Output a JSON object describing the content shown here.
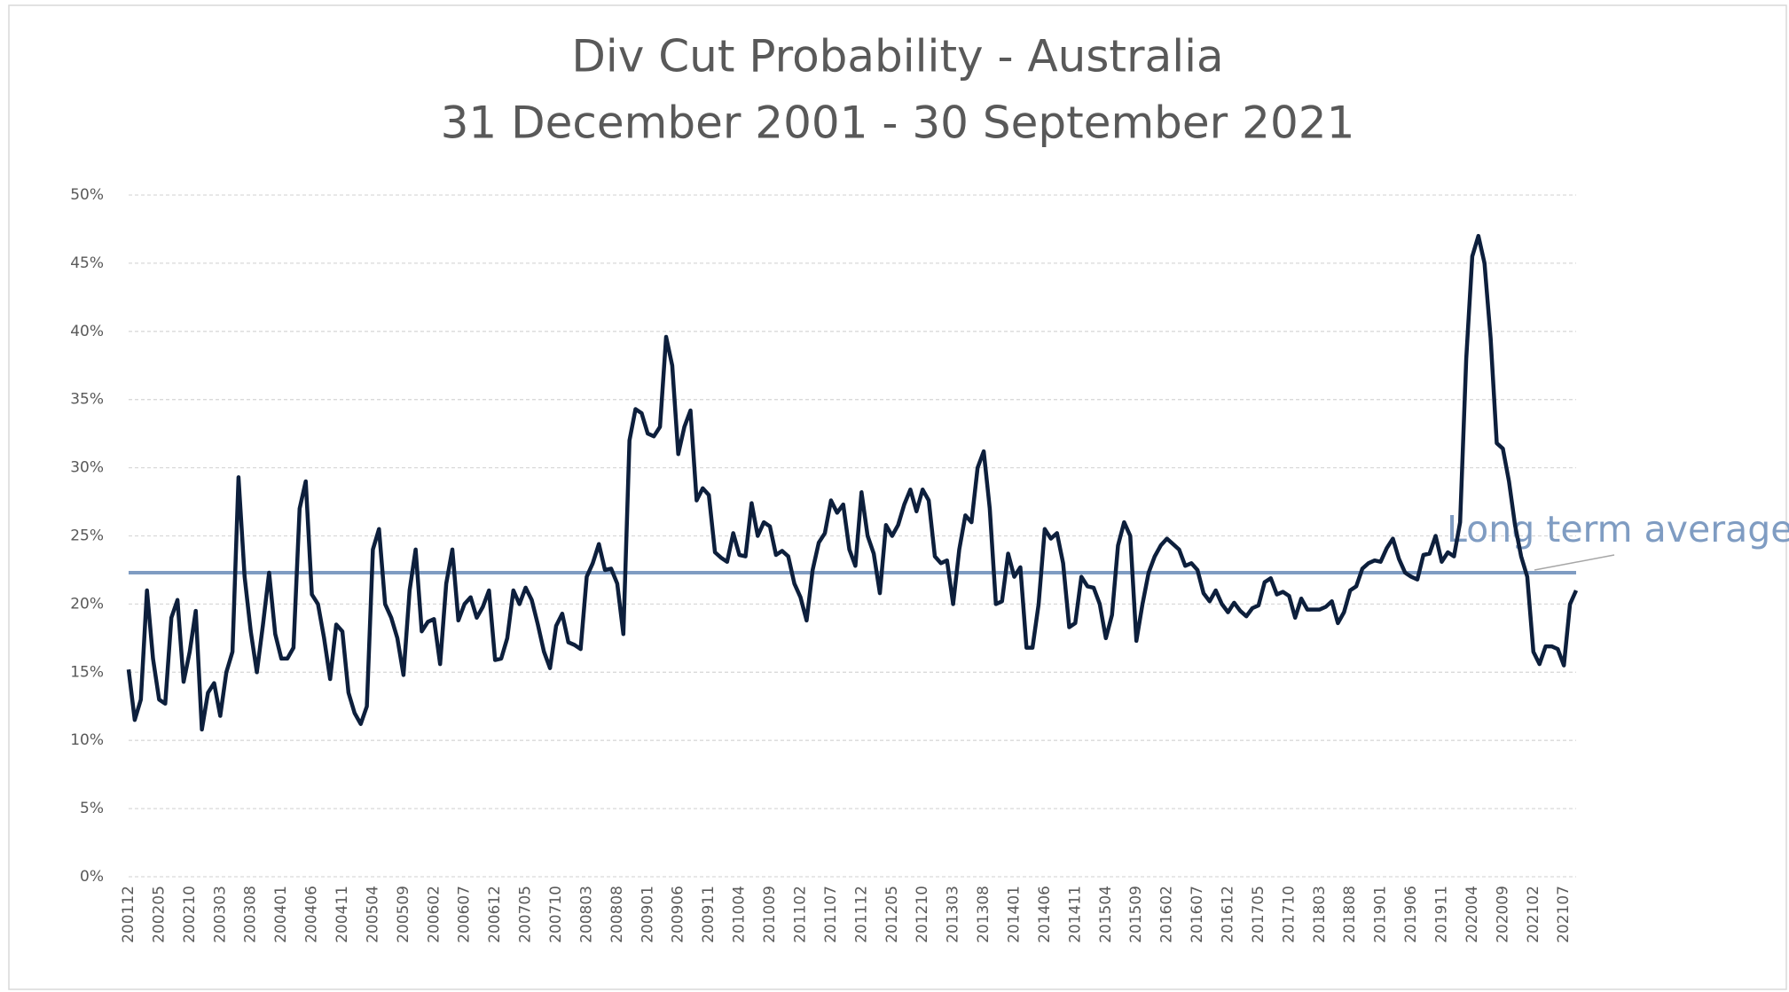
{
  "chart_data": {
    "type": "line",
    "title": "Div Cut Probability - Australia",
    "subtitle": "31 December 2001 - 30 September 2021",
    "categories": [
      "200112",
      null,
      null,
      null,
      null,
      "200205",
      null,
      null,
      null,
      null,
      "200210",
      null,
      null,
      null,
      null,
      "200303",
      null,
      null,
      null,
      null,
      "200308",
      null,
      null,
      null,
      null,
      "200401",
      null,
      null,
      null,
      null,
      "200406",
      null,
      null,
      null,
      null,
      "200411",
      null,
      null,
      null,
      null,
      "200504",
      null,
      null,
      null,
      null,
      "200509",
      null,
      null,
      null,
      null,
      "200602",
      null,
      null,
      null,
      null,
      "200607",
      null,
      null,
      null,
      null,
      "200612",
      null,
      null,
      null,
      null,
      "200705",
      null,
      null,
      null,
      null,
      "200710",
      null,
      null,
      null,
      null,
      "200803",
      null,
      null,
      null,
      null,
      "200808",
      null,
      null,
      null,
      null,
      "200901",
      null,
      null,
      null,
      null,
      "200906",
      null,
      null,
      null,
      null,
      "200911",
      null,
      null,
      null,
      null,
      "201004",
      null,
      null,
      null,
      null,
      "201009",
      null,
      null,
      null,
      null,
      "201102",
      null,
      null,
      null,
      null,
      "201107",
      null,
      null,
      null,
      null,
      "201112",
      null,
      null,
      null,
      null,
      "201205",
      null,
      null,
      null,
      null,
      "201210",
      null,
      null,
      null,
      null,
      "201303",
      null,
      null,
      null,
      null,
      "201308",
      null,
      null,
      null,
      null,
      "201401",
      null,
      null,
      null,
      null,
      "201406",
      null,
      null,
      null,
      null,
      "201411",
      null,
      null,
      null,
      null,
      "201504",
      null,
      null,
      null,
      null,
      "201509",
      null,
      null,
      null,
      null,
      "201602",
      null,
      null,
      null,
      null,
      "201607",
      null,
      null,
      null,
      null,
      "201612",
      null,
      null,
      null,
      null,
      "201705",
      null,
      null,
      null,
      null,
      "201710",
      null,
      null,
      null,
      null,
      "201803",
      null,
      null,
      null,
      null,
      "201808",
      null,
      null,
      null,
      null,
      "201901",
      null,
      null,
      null,
      null,
      "201906",
      null,
      null,
      null,
      null,
      "201911",
      null,
      null,
      null,
      null,
      "202004",
      null,
      null,
      null,
      null,
      "202009",
      null,
      null,
      null,
      null,
      "202102",
      null,
      null,
      null,
      null,
      "202107",
      null,
      null
    ],
    "series": [
      {
        "color": "#0d1f3c",
        "values": [
          15.2,
          11.5,
          13,
          21,
          16,
          13,
          12.7,
          19,
          20.3,
          14.3,
          16.5,
          19.5,
          10.8,
          13.5,
          14.2,
          11.8,
          15,
          16.5,
          29.3,
          22,
          18,
          15,
          18.5,
          22.3,
          17.8,
          16,
          16,
          16.8,
          27,
          29,
          20.7,
          20,
          17.5,
          14.5,
          18.5,
          18,
          13.5,
          12,
          11.2,
          12.5,
          24,
          25.5,
          20,
          19,
          17.5,
          14.8,
          21,
          24,
          18,
          18.7,
          18.9,
          15.6,
          21.5,
          24,
          18.8,
          20,
          20.5,
          19,
          19.8,
          21,
          15.9,
          16,
          17.5,
          21,
          20,
          21.2,
          20.3,
          18.5,
          16.5,
          15.3,
          18.4,
          19.3,
          17.2,
          17,
          16.7,
          22,
          23,
          24.4,
          22.5,
          22.6,
          21.5,
          17.8,
          32,
          34.3,
          34,
          32.5,
          32.3,
          33,
          39.6,
          37.5,
          31,
          33,
          34.2,
          27.6,
          28.5,
          28,
          23.8,
          23.4,
          23.1,
          25.2,
          23.6,
          23.5,
          27.4,
          25,
          26,
          25.7,
          23.6,
          23.9,
          23.5,
          21.5,
          20.5,
          18.8,
          22.5,
          24.5,
          25.2,
          27.6,
          26.7,
          27.3,
          24,
          22.8,
          28.2,
          25,
          23.7,
          20.8,
          25.8,
          25,
          25.8,
          27.3,
          28.4,
          26.8,
          28.4,
          27.6,
          23.5,
          23,
          23.2,
          20,
          24,
          26.5,
          26,
          30,
          31.2,
          27,
          20,
          20.2,
          23.7,
          22,
          22.7,
          16.8,
          16.8,
          20,
          25.5,
          24.8,
          25.2,
          23,
          18.3,
          18.6,
          22,
          21.3,
          21.2,
          20,
          17.5,
          19.2,
          24.3,
          26,
          25,
          17.3,
          20,
          22.3,
          23.5,
          24.3,
          24.8,
          24.4,
          24,
          22.8,
          23,
          22.5,
          20.8,
          20.2,
          21,
          20,
          19.4,
          20.1,
          19.5,
          19.1,
          19.7,
          19.9,
          21.6,
          21.9,
          20.7,
          20.9,
          20.6,
          19,
          20.4,
          19.6,
          19.6,
          19.6,
          19.8,
          20.2,
          18.6,
          19.4,
          21,
          21.3,
          22.6,
          23,
          23.2,
          23.1,
          24.1,
          24.8,
          23.3,
          22.3,
          22,
          21.8,
          23.6,
          23.7,
          25,
          23.1,
          23.8,
          23.5,
          26,
          38,
          45.5,
          47,
          45,
          39.5,
          31.8,
          31.4,
          29,
          25.8,
          23.5,
          22,
          16.5,
          15.6,
          16.9,
          16.9,
          16.7,
          15.5,
          20,
          21
        ]
      }
    ],
    "reference_line": {
      "value": 22.3,
      "label": "Long term average",
      "color": "#7f9cc2"
    },
    "ylim": [
      0,
      50
    ],
    "yticks": [
      {
        "value": 0,
        "label": "0%"
      },
      {
        "value": 5,
        "label": "5%"
      },
      {
        "value": 10,
        "label": "10%"
      },
      {
        "value": 15,
        "label": "15%"
      },
      {
        "value": 20,
        "label": "20%"
      },
      {
        "value": 25,
        "label": "25%"
      },
      {
        "value": 30,
        "label": "30%"
      },
      {
        "value": 35,
        "label": "35%"
      },
      {
        "value": 40,
        "label": "40%"
      },
      {
        "value": 45,
        "label": "45%"
      },
      {
        "value": 50,
        "label": "50%"
      }
    ],
    "grid": true
  }
}
